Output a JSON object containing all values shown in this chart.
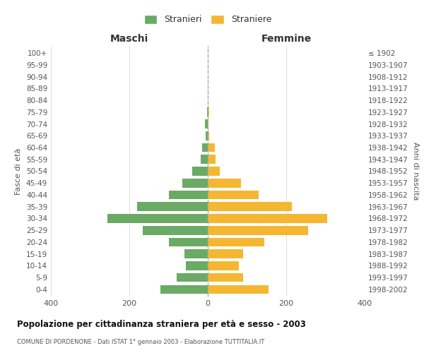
{
  "age_groups": [
    "100+",
    "95-99",
    "90-94",
    "85-89",
    "80-84",
    "75-79",
    "70-74",
    "65-69",
    "60-64",
    "55-59",
    "50-54",
    "45-49",
    "40-44",
    "35-39",
    "30-34",
    "25-29",
    "20-24",
    "15-19",
    "10-14",
    "5-9",
    "0-4"
  ],
  "birth_years": [
    "≤ 1902",
    "1903-1907",
    "1908-1912",
    "1913-1917",
    "1918-1922",
    "1923-1927",
    "1928-1932",
    "1933-1937",
    "1938-1942",
    "1943-1947",
    "1948-1952",
    "1953-1957",
    "1958-1962",
    "1963-1967",
    "1968-1972",
    "1973-1977",
    "1978-1982",
    "1983-1987",
    "1988-1992",
    "1993-1997",
    "1998-2002"
  ],
  "maschi": [
    0,
    0,
    0,
    0,
    0,
    2,
    8,
    6,
    14,
    18,
    40,
    65,
    100,
    180,
    255,
    165,
    100,
    60,
    55,
    80,
    120
  ],
  "femmine": [
    0,
    0,
    0,
    0,
    0,
    3,
    2,
    4,
    18,
    20,
    30,
    85,
    130,
    215,
    305,
    255,
    145,
    90,
    80,
    90,
    155
  ],
  "color_maschi": "#6aaa64",
  "color_femmine": "#f5b731",
  "title": "Popolazione per cittadinanza straniera per età e sesso - 2003",
  "subtitle": "COMUNE DI PORDENONE - Dati ISTAT 1° gennaio 2003 - Elaborazione TUTTITALIA.IT",
  "xlabel_left": "Maschi",
  "xlabel_right": "Femmine",
  "ylabel_left": "Fasce di età",
  "ylabel_right": "Anni di nascita",
  "legend_stranieri": "Stranieri",
  "legend_straniere": "Straniere",
  "xlim": 400,
  "background_color": "#ffffff"
}
